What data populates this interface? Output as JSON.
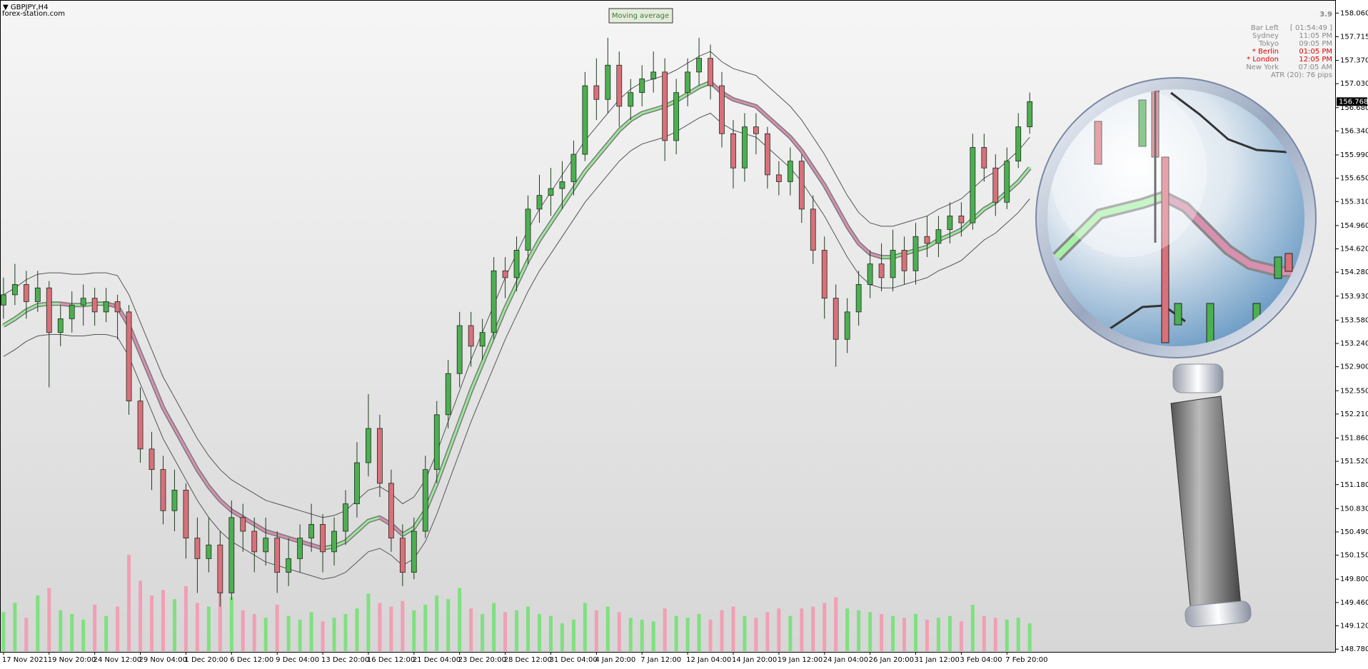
{
  "chart_data": {
    "type": "candlestick",
    "symbol": "GBPJPY,H4",
    "watermark": "forex-station.com",
    "indicator_button": "Moving average",
    "categories": [
      "17 Nov 2021",
      null,
      null,
      null,
      "19 Nov 20:00",
      null,
      null,
      null,
      "24 Nov 12:00",
      null,
      null,
      null,
      "29 Nov 04:00",
      null,
      null,
      null,
      "1 Dec 20:00",
      null,
      null,
      null,
      "6 Dec 12:00",
      null,
      null,
      null,
      "9 Dec 04:00",
      null,
      null,
      null,
      "13 Dec 20:00",
      null,
      null,
      null,
      "16 Dec 12:00",
      null,
      null,
      null,
      "21 Dec 04:00",
      null,
      null,
      null,
      "23 Dec 20:00",
      null,
      null,
      null,
      "28 Dec 12:00",
      null,
      null,
      null,
      "31 Dec 04:00",
      null,
      null,
      null,
      "4 Jan 20:00",
      null,
      null,
      null,
      "7 Jan 12:00",
      null,
      null,
      null,
      "12 Jan 04:00",
      null,
      null,
      null,
      "14 Jan 20:00",
      null,
      null,
      null,
      "19 Jan 12:00",
      null,
      null,
      null,
      "24 Jan 04:00",
      null,
      null,
      null,
      "26 Jan 20:00",
      null,
      null,
      null,
      "31 Jan 12:00",
      null,
      null,
      null,
      "3 Feb 04:00",
      null,
      null,
      null,
      "7 Feb 20:00",
      null,
      null
    ],
    "open": [
      153.8,
      153.95,
      154.1,
      153.85,
      154.05,
      153.4,
      153.6,
      153.8,
      153.9,
      153.7,
      153.85,
      153.7,
      152.4,
      151.7,
      151.4,
      150.8,
      151.1,
      150.4,
      150.1,
      150.3,
      149.6,
      150.7,
      150.5,
      150.2,
      150.4,
      149.9,
      150.1,
      150.4,
      150.6,
      150.2,
      150.5,
      150.9,
      151.5,
      152.0,
      151.2,
      150.4,
      149.9,
      150.5,
      151.4,
      152.2,
      152.8,
      153.5,
      153.2,
      153.4,
      154.3,
      154.2,
      154.6,
      155.2,
      155.4,
      155.5,
      155.6,
      156.0,
      157.0,
      156.8,
      157.3,
      156.7,
      156.9,
      157.1,
      157.2,
      156.2,
      156.9,
      157.2,
      157.4,
      157.0,
      156.3,
      155.8,
      156.4,
      156.3,
      155.7,
      155.6,
      155.9,
      155.2,
      154.6,
      153.9,
      153.3,
      153.7,
      154.1,
      154.4,
      154.2,
      154.6,
      154.3,
      154.8,
      154.7,
      154.9,
      155.1,
      155.0,
      156.1,
      155.8,
      155.3,
      155.9,
      156.4
    ],
    "high": [
      154.2,
      154.4,
      154.3,
      154.3,
      154.15,
      153.8,
      154.0,
      154.1,
      154.05,
      154.05,
      153.95,
      153.8,
      152.6,
      151.95,
      151.6,
      151.4,
      151.2,
      150.7,
      150.7,
      150.5,
      150.95,
      150.9,
      150.7,
      150.7,
      150.5,
      150.4,
      150.6,
      150.9,
      150.75,
      150.7,
      151.1,
      151.8,
      152.5,
      152.2,
      151.4,
      150.6,
      150.7,
      151.6,
      152.4,
      153.0,
      153.7,
      153.7,
      153.6,
      154.5,
      154.5,
      154.8,
      155.4,
      155.7,
      155.8,
      155.9,
      156.2,
      157.2,
      157.4,
      157.7,
      157.5,
      157.1,
      157.3,
      157.5,
      157.4,
      157.1,
      157.4,
      157.7,
      157.6,
      157.2,
      156.5,
      156.6,
      156.6,
      156.4,
      155.9,
      156.1,
      156.0,
      155.4,
      154.8,
      154.1,
      153.9,
      154.3,
      154.6,
      154.7,
      154.9,
      154.8,
      155.0,
      155.1,
      155.1,
      155.3,
      155.3,
      156.3,
      156.3,
      156.0,
      156.1,
      156.6,
      156.9
    ],
    "low": [
      153.6,
      153.8,
      153.6,
      153.7,
      152.6,
      153.2,
      153.4,
      153.5,
      153.5,
      153.55,
      153.3,
      152.2,
      151.5,
      151.1,
      150.6,
      150.5,
      150.1,
      149.6,
      149.9,
      149.4,
      149.5,
      150.2,
      149.9,
      150.0,
      149.6,
      149.7,
      149.9,
      150.2,
      149.9,
      150.0,
      150.3,
      150.7,
      151.3,
      151.0,
      150.2,
      149.7,
      149.8,
      150.4,
      151.2,
      152.0,
      152.6,
      152.9,
      153.0,
      153.3,
      153.9,
      154.0,
      154.4,
      155.0,
      155.1,
      155.2,
      155.4,
      155.9,
      156.5,
      156.6,
      156.4,
      156.5,
      156.7,
      156.9,
      155.9,
      156.0,
      156.7,
      157.0,
      156.8,
      156.1,
      155.5,
      155.6,
      156.0,
      155.5,
      155.4,
      155.4,
      155.0,
      154.4,
      153.6,
      152.9,
      153.1,
      153.5,
      153.9,
      154.0,
      154.0,
      154.1,
      154.1,
      154.5,
      154.5,
      154.7,
      154.8,
      154.9,
      155.6,
      155.1,
      155.2,
      155.8,
      156.3
    ],
    "close": [
      153.95,
      154.1,
      153.85,
      154.05,
      153.4,
      153.6,
      153.8,
      153.9,
      153.7,
      153.85,
      153.7,
      152.4,
      151.7,
      151.4,
      150.8,
      151.1,
      150.4,
      150.1,
      150.3,
      149.6,
      150.7,
      150.5,
      150.2,
      150.4,
      149.9,
      150.1,
      150.4,
      150.6,
      150.2,
      150.5,
      150.9,
      151.5,
      152.0,
      151.2,
      150.4,
      149.9,
      150.5,
      151.4,
      152.2,
      152.8,
      153.5,
      153.2,
      153.4,
      154.3,
      154.2,
      154.6,
      155.2,
      155.4,
      155.5,
      155.6,
      156.0,
      157.0,
      156.8,
      157.3,
      156.7,
      156.9,
      157.1,
      157.2,
      156.2,
      156.9,
      157.2,
      157.4,
      157.0,
      156.3,
      155.8,
      156.4,
      156.3,
      155.7,
      155.6,
      155.9,
      155.2,
      154.6,
      153.9,
      153.3,
      153.7,
      154.1,
      154.4,
      154.2,
      154.6,
      154.3,
      154.8,
      154.7,
      154.9,
      155.1,
      155.0,
      156.1,
      155.8,
      155.3,
      155.9,
      156.4,
      156.768
    ],
    "volume": [
      2100,
      2600,
      1800,
      3000,
      3400,
      2200,
      2000,
      1700,
      2500,
      1900,
      2400,
      5200,
      3800,
      3000,
      3300,
      2800,
      3500,
      2600,
      2400,
      3600,
      2900,
      2200,
      2000,
      1800,
      2500,
      1900,
      1700,
      2100,
      1600,
      1800,
      2000,
      2300,
      3100,
      2600,
      2400,
      2700,
      2200,
      2500,
      3000,
      2800,
      3400,
      2300,
      2000,
      2600,
      2100,
      2200,
      2400,
      2000,
      1900,
      1500,
      1700,
      2600,
      2200,
      2400,
      2100,
      1800,
      1700,
      1600,
      2300,
      1900,
      1800,
      2000,
      1700,
      2200,
      2400,
      1900,
      1800,
      2100,
      2300,
      1900,
      2300,
      2400,
      2600,
      2900,
      2300,
      2200,
      2100,
      2000,
      1900,
      1800,
      2000,
      1700,
      1800,
      1900,
      1600,
      2500,
      1900,
      1800,
      1700,
      1800,
      1500
    ],
    "ma": [
      153.5,
      153.6,
      153.72,
      153.8,
      153.82,
      153.82,
      153.8,
      153.8,
      153.82,
      153.82,
      153.78,
      153.5,
      153.1,
      152.7,
      152.3,
      152.0,
      151.7,
      151.4,
      151.15,
      150.95,
      150.8,
      150.7,
      150.6,
      150.5,
      150.45,
      150.4,
      150.35,
      150.3,
      150.25,
      150.28,
      150.35,
      150.5,
      150.65,
      150.7,
      150.6,
      150.45,
      150.55,
      150.8,
      151.2,
      151.65,
      152.1,
      152.55,
      152.95,
      153.35,
      153.75,
      154.1,
      154.45,
      154.75,
      155.0,
      155.25,
      155.5,
      155.75,
      155.95,
      156.15,
      156.35,
      156.5,
      156.6,
      156.65,
      156.7,
      156.78,
      156.88,
      156.98,
      157.05,
      156.9,
      156.8,
      156.75,
      156.7,
      156.55,
      156.4,
      156.25,
      156.05,
      155.8,
      155.55,
      155.25,
      154.95,
      154.7,
      154.55,
      154.5,
      154.5,
      154.55,
      154.6,
      154.65,
      154.75,
      154.82,
      154.9,
      155.05,
      155.2,
      155.3,
      155.45,
      155.6,
      155.8
    ],
    "upper_band": [
      153.95,
      154.05,
      154.17,
      154.25,
      154.27,
      154.27,
      154.25,
      154.25,
      154.27,
      154.27,
      154.23,
      153.95,
      153.55,
      153.15,
      152.75,
      152.45,
      152.15,
      151.85,
      151.6,
      151.4,
      151.25,
      151.15,
      151.05,
      150.95,
      150.9,
      150.85,
      150.8,
      150.75,
      150.7,
      150.73,
      150.8,
      150.95,
      151.1,
      151.15,
      151.05,
      150.9,
      151.0,
      151.25,
      151.65,
      152.1,
      152.55,
      153.0,
      153.4,
      153.8,
      154.2,
      154.55,
      154.9,
      155.2,
      155.45,
      155.7,
      155.95,
      156.2,
      156.4,
      156.6,
      156.8,
      156.95,
      157.05,
      157.1,
      157.15,
      157.23,
      157.33,
      157.43,
      157.5,
      157.35,
      157.25,
      157.2,
      157.15,
      157.0,
      156.85,
      156.7,
      156.5,
      156.25,
      156.0,
      155.7,
      155.4,
      155.15,
      155.0,
      154.95,
      154.95,
      155.0,
      155.05,
      155.1,
      155.2,
      155.27,
      155.35,
      155.5,
      155.65,
      155.75,
      155.9,
      156.05,
      156.25
    ],
    "lower_band": [
      153.05,
      153.15,
      153.27,
      153.35,
      153.37,
      153.37,
      153.35,
      153.35,
      153.37,
      153.37,
      153.33,
      153.05,
      152.65,
      152.25,
      151.85,
      151.55,
      151.25,
      150.95,
      150.7,
      150.5,
      150.35,
      150.25,
      150.15,
      150.05,
      150.0,
      149.95,
      149.9,
      149.85,
      149.8,
      149.83,
      149.9,
      150.05,
      150.2,
      150.25,
      150.15,
      150.0,
      150.1,
      150.35,
      150.75,
      151.2,
      151.65,
      152.1,
      152.5,
      152.9,
      153.3,
      153.65,
      154.0,
      154.3,
      154.55,
      154.8,
      155.05,
      155.3,
      155.5,
      155.7,
      155.9,
      156.05,
      156.15,
      156.2,
      156.25,
      156.33,
      156.43,
      156.53,
      156.6,
      156.45,
      156.35,
      156.3,
      156.25,
      156.1,
      155.95,
      155.8,
      155.6,
      155.35,
      155.1,
      154.8,
      154.5,
      154.25,
      154.1,
      154.05,
      154.05,
      154.1,
      154.15,
      154.2,
      154.3,
      154.37,
      154.45,
      154.6,
      154.75,
      154.85,
      155.0,
      155.15,
      155.35
    ],
    "ylim": [
      148.74,
      158.23
    ],
    "yticks": [
      {
        "value": 158.06,
        "label": "158.060"
      },
      157.715,
      {
        "value": 157.37,
        "label": "157.370"
      },
      {
        "value": 157.03,
        "label": "157.030"
      },
      {
        "value": 156.68,
        "label": "156.680"
      },
      {
        "value": 156.34,
        "label": "156.340"
      },
      {
        "value": 155.99,
        "label": "155.990"
      },
      {
        "value": 155.65,
        "label": "155.650"
      },
      {
        "value": 155.31,
        "label": "155.310"
      },
      {
        "value": 154.96,
        "label": "154.960"
      },
      {
        "value": 154.62,
        "label": "154.620"
      },
      {
        "value": 154.28,
        "label": "154.280"
      },
      {
        "value": 153.93,
        "label": "153.930"
      },
      {
        "value": 153.58,
        "label": "153.580"
      },
      {
        "value": 153.24,
        "label": "153.240"
      },
      {
        "value": 152.9,
        "label": "152.900"
      },
      {
        "value": 152.55,
        "label": "152.550"
      },
      {
        "value": 152.21,
        "label": "152.210"
      },
      {
        "value": 151.86,
        "label": "151.860"
      },
      {
        "value": 151.52,
        "label": "151.520"
      },
      {
        "value": 151.18,
        "label": "151.180"
      },
      {
        "value": 150.83,
        "label": "150.830"
      },
      {
        "value": 150.49,
        "label": "150.490"
      },
      {
        "value": 150.15,
        "label": "150.150"
      },
      {
        "value": 149.8,
        "label": "149.800"
      },
      {
        "value": 149.46,
        "label": "149.460"
      },
      {
        "value": 149.12,
        "label": "149.120"
      },
      {
        "value": 148.78,
        "label": "148.780"
      }
    ],
    "last_price": 156.768,
    "up_color": "#4caf50",
    "down_color": "#d9707a",
    "volume_up_color": "#7fe07f",
    "volume_down_color": "#f0a0b4",
    "ma_up_color": "#9be89b",
    "ma_down_color": "#d890b0",
    "band_color": "#555555",
    "info_panel": {
      "spread": 3.9,
      "rows": [
        {
          "label": "Bar Left",
          "value": "[ 01:54:49 ]",
          "highlight": false
        },
        {
          "label": "Sydney",
          "value": "11:05 PM",
          "highlight": false
        },
        {
          "label": "Tokyo",
          "value": "09:05 PM",
          "highlight": false
        },
        {
          "label": "* Berlin",
          "value": "01:05 PM",
          "highlight": true
        },
        {
          "label": "* London",
          "value": "12:05 PM",
          "highlight": true
        },
        {
          "label": "New York",
          "value": "07:05 AM",
          "highlight": false
        }
      ],
      "atr": "ATR (20): 76 pips",
      "highlight_color": "#e00000",
      "text_color": "#888888"
    }
  }
}
